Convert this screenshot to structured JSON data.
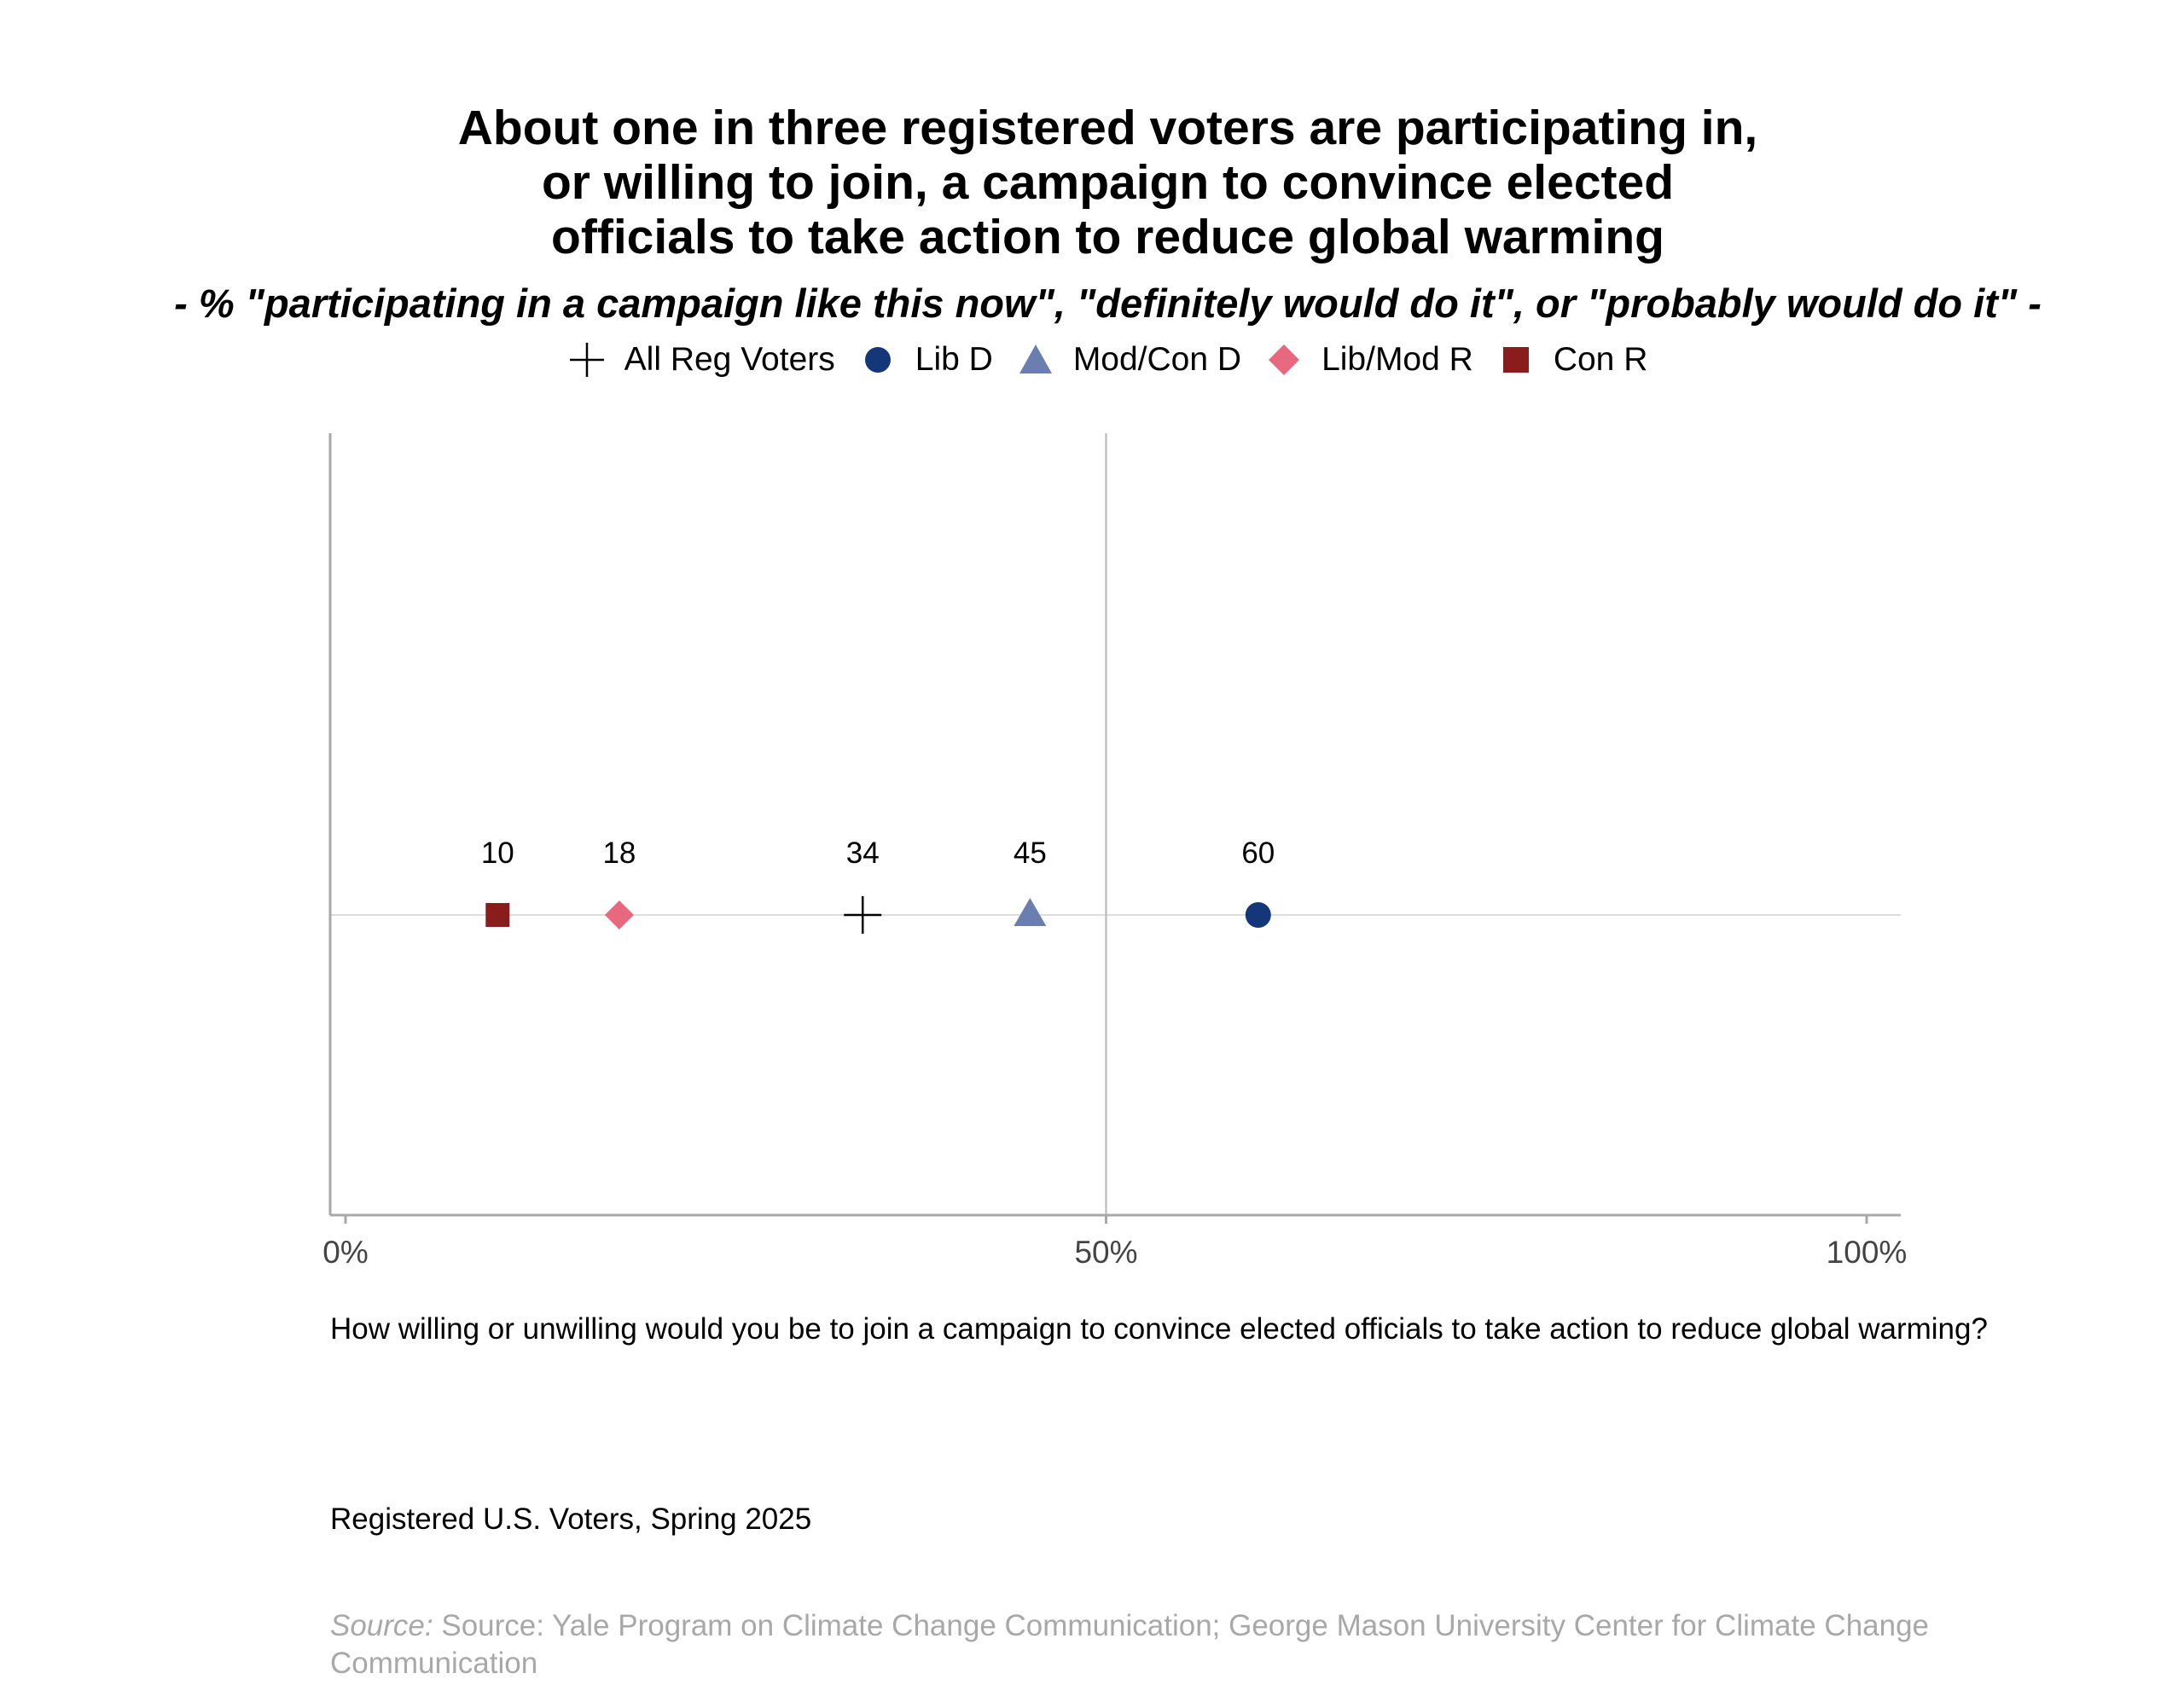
{
  "title_lines": [
    "About one in three registered voters are participating in,",
    "or willing to join, a campaign to convince elected",
    "officials to take action to reduce global warming"
  ],
  "subtitle": "- % \"participating in a campaign like this now\", \"definitely would do it\", or \"probably would do it\" -",
  "legend": [
    {
      "label": "All Reg Voters",
      "marker": "plus",
      "color": "#000000"
    },
    {
      "label": "Lib D",
      "marker": "circle",
      "color": "#14377a"
    },
    {
      "label": "Mod/Con D",
      "marker": "triangle",
      "color": "#6a7fb0"
    },
    {
      "label": "Lib/Mod R",
      "marker": "diamond",
      "color": "#e8697f"
    },
    {
      "label": "Con R",
      "marker": "square",
      "color": "#8b1c1c"
    }
  ],
  "chart_data": {
    "type": "scatter",
    "title": "About one in three registered voters are participating in, or willing to join, a campaign to convince elected officials to take action to reduce global warming",
    "subtitle": "- % \"participating in a campaign like this now\", \"definitely would do it\", or \"probably would do it\" -",
    "xlabel": "",
    "ylabel": "",
    "xlim": [
      0,
      100
    ],
    "x_ticks": [
      "0%",
      "50%",
      "100%"
    ],
    "x_tick_values": [
      0,
      50,
      100
    ],
    "grid": "vertical line at 50%",
    "legend_position": "top",
    "series": [
      {
        "name": "All Reg Voters",
        "marker": "plus",
        "color": "#000000",
        "value": 34,
        "label": "34"
      },
      {
        "name": "Lib D",
        "marker": "circle",
        "color": "#14377a",
        "value": 60,
        "label": "60"
      },
      {
        "name": "Mod/Con D",
        "marker": "triangle",
        "color": "#6a7fb0",
        "value": 45,
        "label": "45"
      },
      {
        "name": "Lib/Mod R",
        "marker": "diamond",
        "color": "#e8697f",
        "value": 18,
        "label": "18"
      },
      {
        "name": "Con R",
        "marker": "square",
        "color": "#8b1c1c",
        "value": 10,
        "label": "10"
      }
    ]
  },
  "question": "How willing or unwilling would you be to join a campaign to convince elected officials to take action to reduce global warming?",
  "sample": "Registered U.S. Voters, Spring 2025",
  "source": {
    "label": "Source:",
    "text": " Source: Yale Program on Climate Change Communication; George Mason University Center for Climate Change Communication"
  }
}
